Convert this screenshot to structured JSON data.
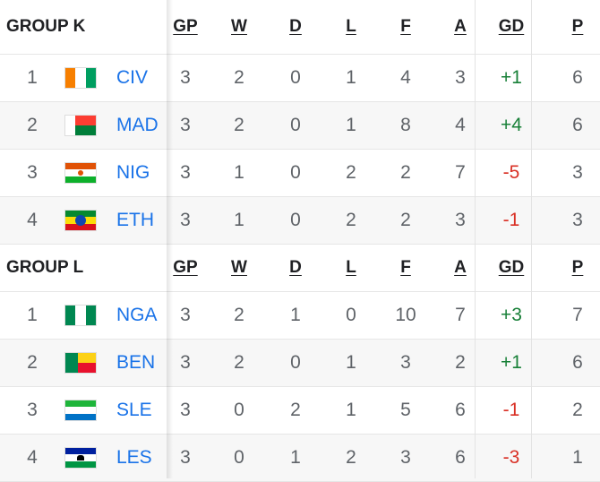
{
  "groups": [
    {
      "name": "GROUP K",
      "columns": [
        "GP",
        "W",
        "D",
        "L",
        "F",
        "A",
        "GD",
        "P"
      ],
      "rows": [
        {
          "rank": "1",
          "team": "CIV",
          "flag": "ivory-coast-flag-icon",
          "gp": "3",
          "w": "2",
          "d": "0",
          "l": "1",
          "f": "4",
          "a": "3",
          "gd": "+1",
          "p": "6"
        },
        {
          "rank": "2",
          "team": "MAD",
          "flag": "madagascar-flag-icon",
          "gp": "3",
          "w": "2",
          "d": "0",
          "l": "1",
          "f": "8",
          "a": "4",
          "gd": "+4",
          "p": "6"
        },
        {
          "rank": "3",
          "team": "NIG",
          "flag": "niger-flag-icon",
          "gp": "3",
          "w": "1",
          "d": "0",
          "l": "2",
          "f": "2",
          "a": "7",
          "gd": "-5",
          "p": "3"
        },
        {
          "rank": "4",
          "team": "ETH",
          "flag": "ethiopia-flag-icon",
          "gp": "3",
          "w": "1",
          "d": "0",
          "l": "2",
          "f": "2",
          "a": "3",
          "gd": "-1",
          "p": "3"
        }
      ]
    },
    {
      "name": "GROUP L",
      "columns": [
        "GP",
        "W",
        "D",
        "L",
        "F",
        "A",
        "GD",
        "P"
      ],
      "rows": [
        {
          "rank": "1",
          "team": "NGA",
          "flag": "nigeria-flag-icon",
          "gp": "3",
          "w": "2",
          "d": "1",
          "l": "0",
          "f": "10",
          "a": "7",
          "gd": "+3",
          "p": "7"
        },
        {
          "rank": "2",
          "team": "BEN",
          "flag": "benin-flag-icon",
          "gp": "3",
          "w": "2",
          "d": "0",
          "l": "1",
          "f": "3",
          "a": "2",
          "gd": "+1",
          "p": "6"
        },
        {
          "rank": "3",
          "team": "SLE",
          "flag": "sierra-leone-flag-icon",
          "gp": "3",
          "w": "0",
          "d": "2",
          "l": "1",
          "f": "5",
          "a": "6",
          "gd": "-1",
          "p": "2"
        },
        {
          "rank": "4",
          "team": "LES",
          "flag": "lesotho-flag-icon",
          "gp": "3",
          "w": "0",
          "d": "1",
          "l": "2",
          "f": "3",
          "a": "6",
          "gd": "-3",
          "p": "1"
        }
      ]
    }
  ],
  "colors": {
    "team_link": "#1a73e8",
    "positive_gd": "#188038",
    "negative_gd": "#d93025"
  }
}
